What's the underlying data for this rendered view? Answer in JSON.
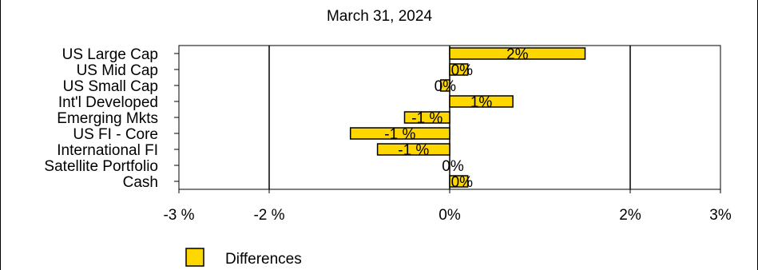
{
  "chart_data": {
    "type": "bar",
    "orientation": "horizontal",
    "title": "March 31, 2024",
    "categories": [
      "US Large Cap",
      "US Mid Cap",
      "US Small Cap",
      "Int'l Developed",
      "Emerging Mkts",
      "US FI - Core",
      "International FI",
      "Satellite Portfolio",
      "Cash"
    ],
    "series": [
      {
        "name": "Differences",
        "color": "#ffd700",
        "values": [
          1.5,
          0.2,
          -0.1,
          0.7,
          -0.5,
          -1.1,
          -0.8,
          0.0,
          0.2
        ],
        "labels": [
          "2%",
          "0%",
          "0%",
          "1%",
          "-1 %",
          "-1 %",
          "-1 %",
          "0%",
          "0%"
        ]
      }
    ],
    "xlim": [
      -3,
      3
    ],
    "xticks": [
      -3,
      -2,
      0,
      2,
      3
    ],
    "xtick_labels": [
      "-3 %",
      "-2 %",
      "0%",
      "2%",
      "3%"
    ],
    "gridlines": [
      -2,
      0,
      2
    ],
    "grid": true,
    "legend": {
      "position": "bottom-left",
      "entries": [
        "Differences"
      ]
    },
    "xlabel": "",
    "ylabel": ""
  }
}
